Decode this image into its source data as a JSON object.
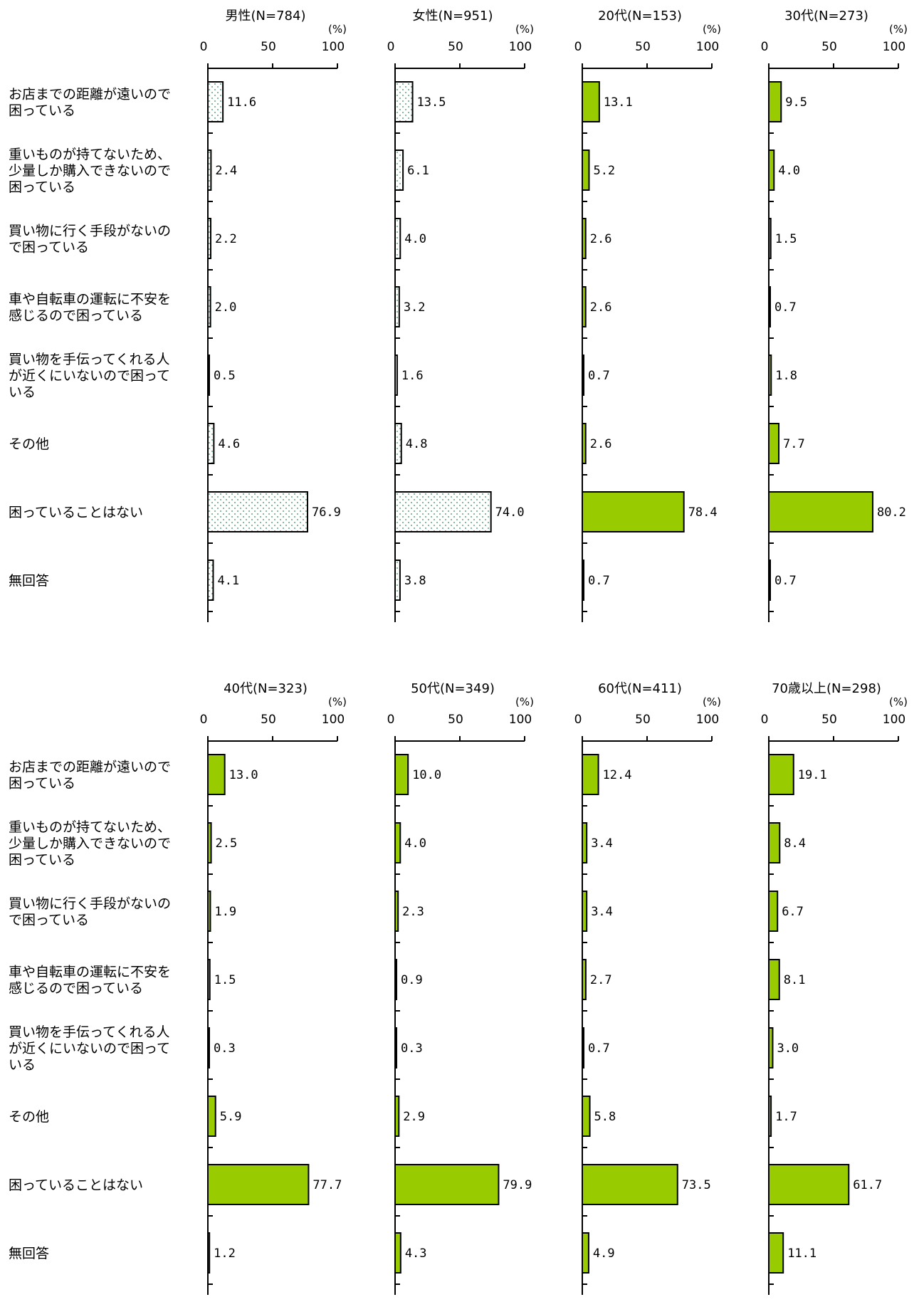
{
  "categories": [
    "お店までの距離が遠いので\n困っている",
    "重いものが持てないため、\n少量しか購入できないので\n困っている",
    "買い物に行く手段がないの\nで困っている",
    "車や自転車の運転に不安を\n感じるので困っている",
    "買い物を手伝ってくれる人\nが近くにいないので困って\nいる",
    "その他",
    "困っていることはない",
    "無回答"
  ],
  "unit_label": "(%)",
  "colors": {
    "green": "#99cc00",
    "dotted_fill": "#ffffff",
    "dot": "#2e8b57",
    "stroke": "#000000"
  },
  "chart_data": [
    {
      "type": "bar",
      "orientation": "horizontal",
      "title": "男性(N=784)",
      "style": "dotted",
      "xlim": [
        0,
        100
      ],
      "ticks": [
        0,
        50,
        100
      ],
      "values": [
        11.6,
        2.4,
        2.2,
        2.0,
        0.5,
        4.6,
        76.9,
        4.1
      ],
      "value_labels": [
        "11.6",
        "2.4",
        "2.2",
        "2.0",
        "0.5",
        "4.6",
        "76.9",
        "4.1"
      ]
    },
    {
      "type": "bar",
      "orientation": "horizontal",
      "title": "女性(N=951)",
      "style": "dotted",
      "xlim": [
        0,
        100
      ],
      "ticks": [
        0,
        50,
        100
      ],
      "values": [
        13.5,
        6.1,
        4.0,
        3.2,
        1.6,
        4.8,
        74.0,
        3.8
      ],
      "value_labels": [
        "13.5",
        "6.1",
        "4.0",
        "3.2",
        "1.6",
        "4.8",
        "74.0",
        "3.8"
      ]
    },
    {
      "type": "bar",
      "orientation": "horizontal",
      "title": "20代(N=153)",
      "style": "green",
      "xlim": [
        0,
        100
      ],
      "ticks": [
        0,
        50,
        100
      ],
      "values": [
        13.1,
        5.2,
        2.6,
        2.6,
        0.7,
        2.6,
        78.4,
        0.7
      ],
      "value_labels": [
        "13.1",
        "5.2",
        "2.6",
        "2.6",
        "0.7",
        "2.6",
        "78.4",
        "0.7"
      ]
    },
    {
      "type": "bar",
      "orientation": "horizontal",
      "title": "30代(N=273)",
      "style": "green",
      "xlim": [
        0,
        100
      ],
      "ticks": [
        0,
        50,
        100
      ],
      "values": [
        9.5,
        4.0,
        1.5,
        0.7,
        1.8,
        7.7,
        80.2,
        0.7
      ],
      "value_labels": [
        "9.5",
        "4.0",
        "1.5",
        "0.7",
        "1.8",
        "7.7",
        "80.2",
        "0.7"
      ]
    },
    {
      "type": "bar",
      "orientation": "horizontal",
      "title": "40代(N=323)",
      "style": "green",
      "xlim": [
        0,
        100
      ],
      "ticks": [
        0,
        50,
        100
      ],
      "values": [
        13.0,
        2.5,
        1.9,
        1.5,
        0.3,
        5.9,
        77.7,
        1.2
      ],
      "value_labels": [
        "13.0",
        "2.5",
        "1.9",
        "1.5",
        "0.3",
        "5.9",
        "77.7",
        "1.2"
      ]
    },
    {
      "type": "bar",
      "orientation": "horizontal",
      "title": "50代(N=349)",
      "style": "green",
      "xlim": [
        0,
        100
      ],
      "ticks": [
        0,
        50,
        100
      ],
      "values": [
        10.0,
        4.0,
        2.3,
        0.9,
        0.3,
        2.9,
        79.9,
        4.3
      ],
      "value_labels": [
        "10.0",
        "4.0",
        "2.3",
        "0.9",
        "0.3",
        "2.9",
        "79.9",
        "4.3"
      ]
    },
    {
      "type": "bar",
      "orientation": "horizontal",
      "title": "60代(N=411)",
      "style": "green",
      "xlim": [
        0,
        100
      ],
      "ticks": [
        0,
        50,
        100
      ],
      "values": [
        12.4,
        3.4,
        3.4,
        2.7,
        0.7,
        5.8,
        73.5,
        4.9
      ],
      "value_labels": [
        "12.4",
        "3.4",
        "3.4",
        "2.7",
        "0.7",
        "5.8",
        "73.5",
        "4.9"
      ]
    },
    {
      "type": "bar",
      "orientation": "horizontal",
      "title": "70歳以上(N=298)",
      "style": "green",
      "xlim": [
        0,
        100
      ],
      "ticks": [
        0,
        50,
        100
      ],
      "values": [
        19.1,
        8.4,
        6.7,
        8.1,
        3.0,
        1.7,
        61.7,
        11.1
      ],
      "value_labels": [
        "19.1",
        "8.4",
        "6.7",
        "8.1",
        "3.0",
        "1.7",
        "61.7",
        "11.1"
      ]
    }
  ]
}
